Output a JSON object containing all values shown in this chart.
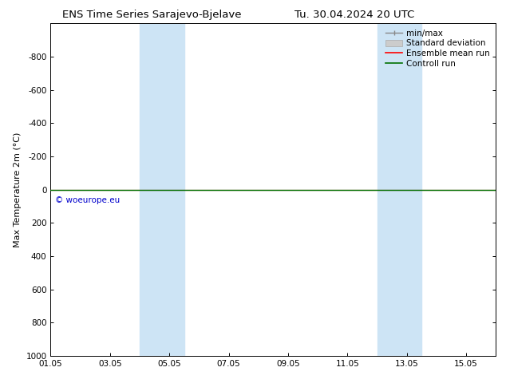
{
  "title_left": "ENS Time Series Sarajevo-Bjelave",
  "title_right": "Tu. 30.04.2024 20 UTC",
  "ylabel": "Max Temperature 2m (°C)",
  "ylim_top": -1000,
  "ylim_bottom": 1000,
  "yticks": [
    -800,
    -600,
    -400,
    -200,
    0,
    200,
    400,
    600,
    800,
    1000
  ],
  "xtick_labels": [
    "01.05",
    "03.05",
    "05.05",
    "07.05",
    "09.05",
    "11.05",
    "13.05",
    "15.05"
  ],
  "xtick_positions": [
    0,
    2,
    4,
    6,
    8,
    10,
    12,
    14
  ],
  "xlim": [
    0,
    15
  ],
  "shaded_bands": [
    {
      "x_start": 3.0,
      "x_end": 4.5
    },
    {
      "x_start": 11.0,
      "x_end": 12.5
    }
  ],
  "shade_color": "#cde4f5",
  "line_color_green": "#007000",
  "line_color_red": "#ff0000",
  "line_color_gray": "#888888",
  "line_color_std": "#cccccc",
  "copyright_text": "© woeurope.eu",
  "copyright_color": "#0000cc",
  "background_color": "#ffffff",
  "title_fontsize": 9.5,
  "axis_label_fontsize": 8,
  "tick_fontsize": 7.5,
  "legend_fontsize": 7.5
}
